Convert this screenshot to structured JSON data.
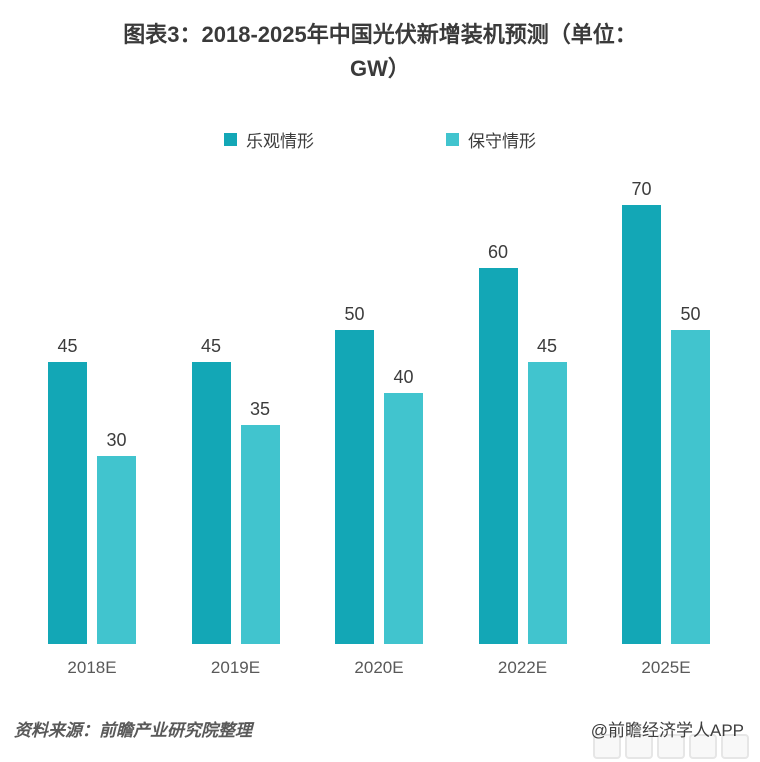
{
  "header": {
    "title_line1": "图表3：2018-2025年中国光伏新增装机预测（单位：",
    "title_line2": "GW）"
  },
  "chart_data": {
    "type": "bar",
    "title": "图表3：2018-2025年中国光伏新增装机预测（单位：GW）",
    "unit": "GW",
    "categories": [
      "2018E",
      "2019E",
      "2020E",
      "2022E",
      "2025E"
    ],
    "series": [
      {
        "name": "乐观情形",
        "color": "#13a7b6",
        "values": [
          45,
          45,
          50,
          60,
          70
        ]
      },
      {
        "name": "保守情形",
        "color": "#41c4ce",
        "values": [
          30,
          35,
          40,
          45,
          50
        ]
      }
    ],
    "xlabel": "",
    "ylabel": "",
    "ylim": [
      0,
      75
    ],
    "grid": false,
    "legend_position": "top",
    "data_labels": true,
    "axis_visible": false
  },
  "footer": {
    "source": "资料来源：前瞻产业研究院整理",
    "credit": "@前瞻经济学人APP"
  },
  "colors": {
    "series_optimistic": "#13a7b6",
    "series_conservative": "#41c4ce",
    "title_text": "#3a3a3a",
    "value_label_text": "#3c3c3c",
    "axis_label_text": "#595959",
    "source_text": "#595959",
    "credit_text": "#3d3d3d",
    "background": "#ffffff"
  }
}
